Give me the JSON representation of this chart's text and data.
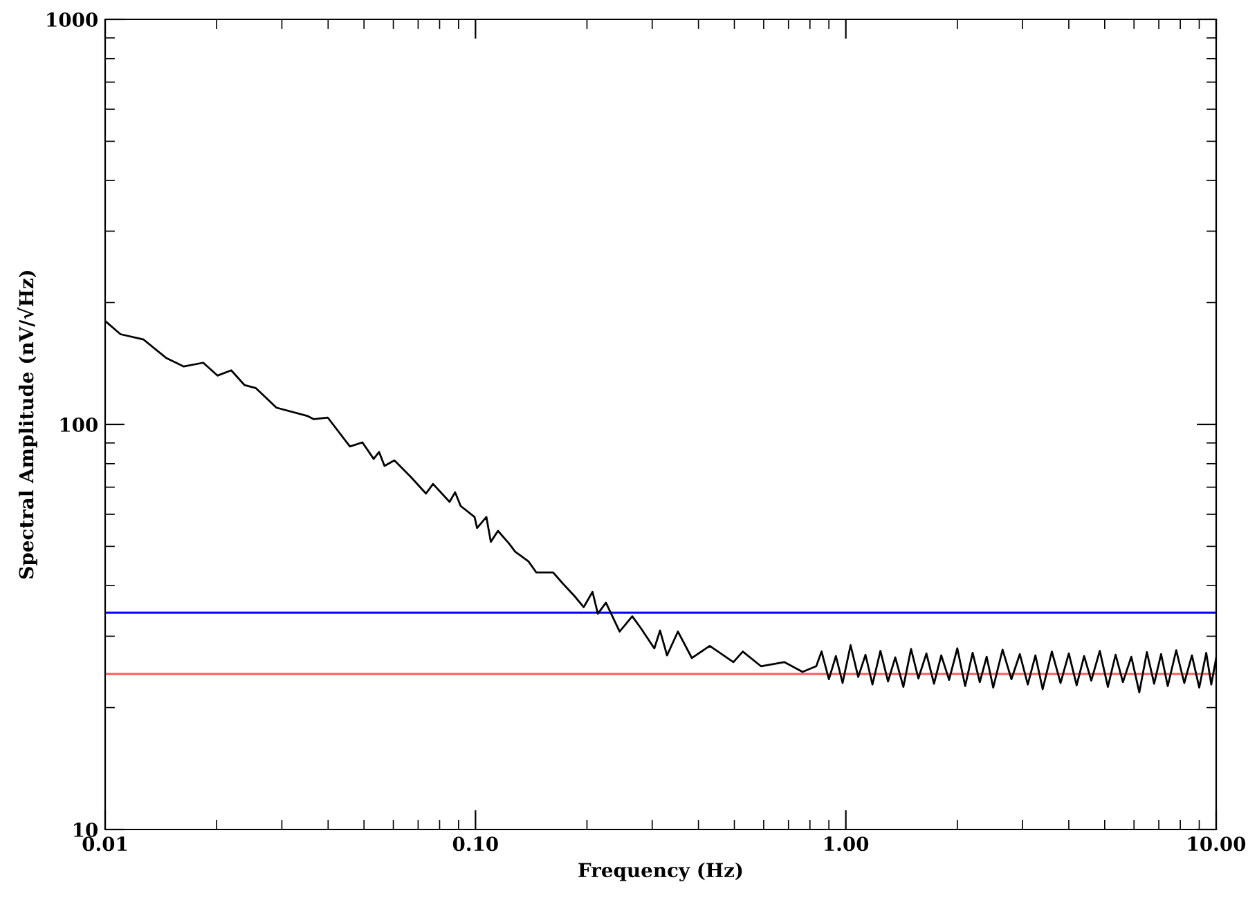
{
  "chart_data": {
    "type": "line",
    "xlabel": "Frequency (Hz)",
    "ylabel": "Spectral Amplitude (nV/√Hz)",
    "log": "xy",
    "grid": false,
    "legend": false,
    "marker": "none",
    "line_style": "solid",
    "xlim": [
      0.01,
      10
    ],
    "ylim": [
      10,
      1000
    ],
    "xticks": [
      {
        "value": 0.01,
        "label": "0.01"
      },
      {
        "value": 0.1,
        "label": "0.10"
      },
      {
        "value": 1,
        "label": "1.00"
      },
      {
        "value": 10,
        "label": "10.00"
      }
    ],
    "yticks": [
      10,
      100,
      1000
    ],
    "ref_lines": [
      {
        "axis": "y",
        "value": 34.3,
        "color": "#0000ff"
      },
      {
        "axis": "y",
        "value": 24.2,
        "color": "#ff5a5a"
      }
    ],
    "series": [
      {
        "color": "#000000",
        "x": [
          0.01,
          0.011,
          0.0127,
          0.0146,
          0.0163,
          0.0184,
          0.0201,
          0.0219,
          0.0238,
          0.0255,
          0.029,
          0.0351,
          0.0366,
          0.0399,
          0.0458,
          0.0495,
          0.0531,
          0.0549,
          0.0568,
          0.0604,
          0.0669,
          0.0735,
          0.0768,
          0.0851,
          0.0881,
          0.0912,
          0.0994,
          0.101,
          0.107,
          0.11,
          0.115,
          0.123,
          0.128,
          0.139,
          0.146,
          0.162,
          0.172,
          0.185,
          0.196,
          0.207,
          0.214,
          0.225,
          0.245,
          0.265,
          0.279,
          0.304,
          0.315,
          0.329,
          0.352,
          0.384,
          0.429,
          0.497,
          0.527,
          0.59,
          0.682,
          0.764,
          0.832,
          0.86,
          0.9,
          0.94,
          0.98,
          1.03,
          1.08,
          1.13,
          1.18,
          1.24,
          1.3,
          1.36,
          1.43,
          1.5,
          1.57,
          1.65,
          1.73,
          1.81,
          1.9,
          2.0,
          2.1,
          2.2,
          2.3,
          2.4,
          2.5,
          2.65,
          2.8,
          2.95,
          3.1,
          3.25,
          3.4,
          3.6,
          3.8,
          4.0,
          4.2,
          4.4,
          4.6,
          4.85,
          5.1,
          5.35,
          5.6,
          5.9,
          6.2,
          6.5,
          6.8,
          7.1,
          7.4,
          7.8,
          8.2,
          8.6,
          9.0,
          9.4,
          9.7,
          10.0
        ],
        "values": [
          180,
          167,
          162,
          146,
          139,
          142,
          132,
          136,
          125,
          123,
          110,
          105,
          103,
          104,
          88.2,
          90.3,
          82.2,
          85.5,
          79.0,
          81.5,
          74.2,
          67.5,
          71.3,
          64.4,
          68.0,
          62.9,
          59.1,
          55.5,
          59.1,
          51.3,
          54.6,
          50.9,
          48.5,
          45.9,
          43.1,
          43.1,
          40.5,
          37.7,
          35.4,
          38.6,
          34.1,
          36.3,
          30.8,
          33.6,
          31.5,
          28.0,
          31.0,
          26.9,
          30.8,
          26.5,
          28.4,
          25.9,
          27.5,
          25.3,
          25.9,
          24.5,
          25.3,
          27.5,
          23.5,
          26.8,
          23.0,
          28.5,
          23.8,
          27.0,
          22.8,
          27.6,
          23.2,
          26.6,
          22.5,
          27.9,
          23.6,
          27.2,
          22.9,
          26.9,
          23.4,
          28.0,
          22.6,
          27.3,
          23.1,
          26.7,
          22.4,
          27.8,
          23.5,
          27.1,
          22.8,
          26.9,
          22.2,
          27.5,
          23.0,
          27.2,
          22.7,
          26.8,
          23.3,
          27.6,
          22.5,
          27.0,
          23.1,
          26.7,
          21.8,
          27.4,
          22.9,
          27.1,
          22.6,
          27.7,
          23.0,
          26.9,
          22.4,
          27.3,
          22.8,
          26.5
        ]
      }
    ]
  }
}
